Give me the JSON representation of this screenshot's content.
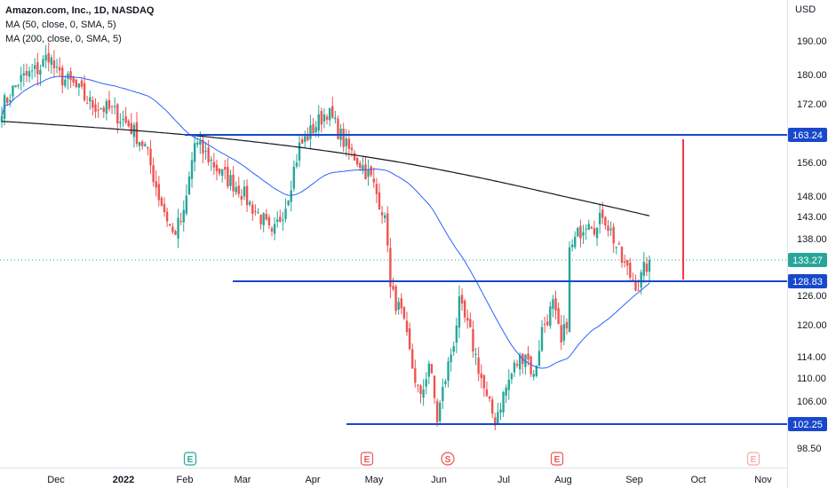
{
  "legend": {
    "title": "Amazon.com, Inc., 1D, NASDAQ",
    "ma50": "MA (50, close, 0, SMA, 5)",
    "ma200": "MA (200, close, 0, SMA, 5)"
  },
  "colors": {
    "up": "#26a69a",
    "down": "#ef5350",
    "ma50": "#2962ff",
    "ma200": "#131722",
    "level": "#1848cc",
    "target": "#f23645",
    "last_price": "#26a69a",
    "grid_text": "#131722"
  },
  "chart_data": {
    "type": "candlestick",
    "title": "Amazon.com, Inc., 1D, NASDAQ",
    "currency": "USD",
    "y_axis": {
      "scale": "log",
      "ticks": [
        "190.00",
        "180.00",
        "172.00",
        "163.24",
        "156.00",
        "148.00",
        "143.00",
        "138.00",
        "133.27",
        "128.83",
        "126.00",
        "120.00",
        "114.00",
        "110.00",
        "106.00",
        "102.25",
        "98.50"
      ]
    },
    "x_axis": {
      "ticks": [
        "Dec",
        "2022",
        "Feb",
        "Mar",
        "Apr",
        "May",
        "Jun",
        "Jul",
        "Aug",
        "Sep",
        "Oct",
        "Nov"
      ]
    },
    "last_price": 133.27,
    "horizontal_levels": [
      {
        "price": 163.24,
        "label": "163.24"
      },
      {
        "price": 128.83,
        "label": "128.83"
      },
      {
        "price": 102.25,
        "label": "102.25"
      }
    ],
    "price_target_line": {
      "from": 128.83,
      "to": 163.24
    },
    "event_markers": [
      {
        "letter": "E",
        "near": "Feb",
        "style": "green"
      },
      {
        "letter": "E",
        "near": "Apr-May",
        "style": "red"
      },
      {
        "letter": "S",
        "near": "Jun",
        "style": "red-circle"
      },
      {
        "letter": "E",
        "near": "Jul-Aug",
        "style": "red"
      },
      {
        "letter": "E",
        "near": "Oct-Nov",
        "style": "faded"
      }
    ],
    "series": [
      {
        "name": "MA (50, close, 0, SMA, 5)",
        "type": "line"
      },
      {
        "name": "MA (200, close, 0, SMA, 5)",
        "type": "line"
      }
    ]
  }
}
